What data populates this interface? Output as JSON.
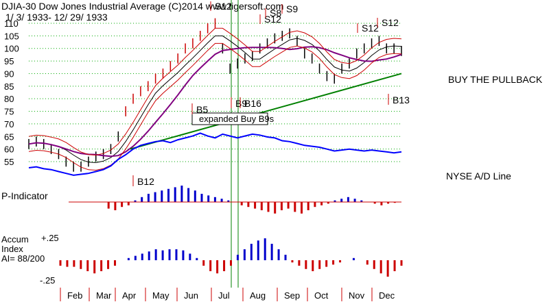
{
  "header": {
    "title": "DJIA-30  Dow Jones Industrial Average   (C)2014  www.tigersoft.com",
    "date_range": "1/ 3/ 1933-  12/ 29/ 1933"
  },
  "annotations": {
    "buy_pullback": "BUY THE PULLBACK",
    "expanded": "expanded Buy B9s",
    "nyse_ad": "NYSE A/D Line",
    "p_indicator": "P-Indicator",
    "accum_line1": "Accum",
    "accum_line2": "Index",
    "accum_line3": "AI= 88/200",
    "accum_top": "+.25",
    "accum_bottom": "-.25"
  },
  "signals": [
    {
      "text": "S12",
      "x": "Jul 1"
    },
    {
      "text": "S12",
      "x": "Aug 15"
    },
    {
      "text": "S8",
      "x": "Aug 18"
    },
    {
      "text": "S9",
      "x": "Sep 5"
    },
    {
      "text": "S12",
      "x": "Nov 8"
    },
    {
      "text": "S12",
      "x": "Nov 25"
    },
    {
      "text": "B5",
      "x": "Jun 20"
    },
    {
      "text": "B9",
      "x": "Jul 20"
    },
    {
      "text": "B16",
      "x": "Jul 25"
    },
    {
      "text": "B12",
      "x": "Apr 10"
    },
    {
      "text": "B13",
      "x": "Dec 5"
    }
  ],
  "colors": {
    "price_bars": "#000000",
    "red_bars": "#cc0000",
    "ad_line": "#0000ff",
    "ma_purple": "#800080",
    "ma_green": "#008000",
    "p_pos": "#0000cc",
    "p_neg": "#cc0000",
    "grid": "#00aa00",
    "vline": "#008000"
  },
  "chart_data": {
    "type": "line",
    "title": "DJIA-30  Dow Jones Industrial Average",
    "y_ticks": [
      110,
      105,
      100,
      95,
      90,
      85,
      80,
      75,
      70,
      65,
      60,
      55
    ],
    "x_ticks": [
      "Feb",
      "Mar",
      "Apr",
      "May",
      "Jun",
      "Jul",
      "Aug",
      "Sep",
      "Oct",
      "Nov",
      "Dec"
    ],
    "price": [
      62,
      63,
      62,
      60,
      58,
      55,
      53,
      53,
      55,
      57,
      58,
      60,
      65,
      75,
      80,
      83,
      85,
      88,
      90,
      93,
      96,
      100,
      102,
      105,
      108,
      110,
      100,
      92,
      94,
      96,
      97,
      100,
      102,
      104,
      105,
      106,
      103,
      98,
      96,
      92,
      89,
      88,
      92,
      94,
      98,
      100,
      102,
      103,
      100,
      100,
      99
    ],
    "ad_line": [
      46,
      47,
      45,
      44,
      42,
      40,
      38,
      39,
      40,
      42,
      44,
      48,
      55,
      60,
      66,
      70,
      72,
      74,
      75,
      73,
      76,
      78,
      80,
      83,
      80,
      78,
      82,
      80,
      78,
      80,
      82,
      81,
      79,
      78,
      75,
      74,
      72,
      70,
      69,
      68,
      66,
      64,
      65,
      66,
      65,
      64,
      65,
      64,
      63,
      62,
      63
    ],
    "p_indicator": [
      0,
      0,
      0,
      0,
      0,
      0,
      -8,
      -10,
      -6,
      -4,
      2,
      6,
      10,
      12,
      14,
      16,
      18,
      20,
      17,
      14,
      10,
      8,
      6,
      4,
      2,
      0,
      -4,
      -6,
      -8,
      -10,
      -12,
      -14,
      -10,
      -8,
      -12,
      -14,
      -10,
      -6,
      -4,
      -2,
      2,
      4,
      6,
      4,
      2,
      0,
      -2,
      -4,
      -2,
      -1,
      0
    ],
    "accum_index": [
      -0.05,
      -0.06,
      -0.06,
      -0.08,
      -0.1,
      -0.12,
      -0.1,
      -0.08,
      -0.05,
      0.0,
      0.02,
      0.04,
      0.06,
      0.08,
      0.1,
      0.09,
      0.1,
      0.1,
      0.09,
      0.06,
      0.02,
      -0.05,
      -0.1,
      -0.12,
      -0.1,
      -0.05,
      0.05,
      0.1,
      0.15,
      0.18,
      0.2,
      0.15,
      0.1,
      0.05,
      -0.02,
      -0.05,
      -0.08,
      -0.1,
      -0.08,
      -0.06,
      -0.04,
      -0.02,
      0.0,
      0.02,
      0.0,
      -0.04,
      -0.08,
      -0.12,
      -0.15,
      -0.1,
      -0.05
    ]
  }
}
